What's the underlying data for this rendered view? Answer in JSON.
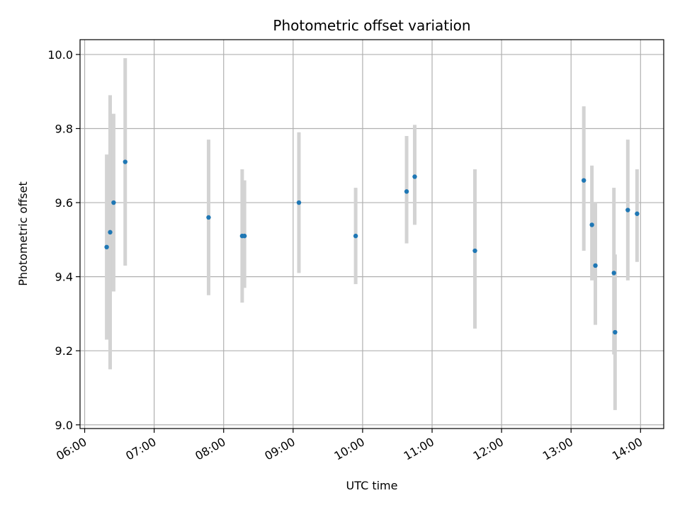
{
  "chart_data": {
    "type": "scatter",
    "title": "Photometric offset variation",
    "xlabel": "UTC time",
    "ylabel": "Photometric offset",
    "grid": true,
    "xlim": [
      "05:56",
      "14:20"
    ],
    "ylim": [
      8.99,
      10.04
    ],
    "x_ticks": [
      "06:00",
      "07:00",
      "08:00",
      "09:00",
      "10:00",
      "11:00",
      "12:00",
      "13:00",
      "14:00"
    ],
    "y_ticks": [
      9.0,
      9.2,
      9.4,
      9.6,
      9.8,
      10.0
    ],
    "marker_color": "#1f77b4",
    "errorbar_color": "#d3d3d3",
    "series": [
      {
        "points": [
          {
            "x": "06:19",
            "y": 9.48,
            "err_low": 9.23,
            "err_high": 9.73
          },
          {
            "x": "06:22",
            "y": 9.52,
            "err_low": 9.15,
            "err_high": 9.89
          },
          {
            "x": "06:25",
            "y": 9.6,
            "err_low": 9.36,
            "err_high": 9.84
          },
          {
            "x": "06:35",
            "y": 9.71,
            "err_low": 9.43,
            "err_high": 9.99
          },
          {
            "x": "07:47",
            "y": 9.56,
            "err_low": 9.35,
            "err_high": 9.77
          },
          {
            "x": "08:16",
            "y": 9.51,
            "err_low": 9.33,
            "err_high": 9.69
          },
          {
            "x": "08:18",
            "y": 9.51,
            "err_low": 9.37,
            "err_high": 9.66
          },
          {
            "x": "09:05",
            "y": 9.6,
            "err_low": 9.41,
            "err_high": 9.79
          },
          {
            "x": "09:54",
            "y": 9.51,
            "err_low": 9.38,
            "err_high": 9.64
          },
          {
            "x": "10:38",
            "y": 9.63,
            "err_low": 9.49,
            "err_high": 9.78
          },
          {
            "x": "10:45",
            "y": 9.67,
            "err_low": 9.54,
            "err_high": 9.81
          },
          {
            "x": "11:37",
            "y": 9.47,
            "err_low": 9.26,
            "err_high": 9.69
          },
          {
            "x": "13:11",
            "y": 9.66,
            "err_low": 9.47,
            "err_high": 9.86
          },
          {
            "x": "13:18",
            "y": 9.54,
            "err_low": 9.39,
            "err_high": 9.7
          },
          {
            "x": "13:21",
            "y": 9.43,
            "err_low": 9.27,
            "err_high": 9.6
          },
          {
            "x": "13:37",
            "y": 9.41,
            "err_low": 9.19,
            "err_high": 9.64
          },
          {
            "x": "13:38",
            "y": 9.25,
            "err_low": 9.04,
            "err_high": 9.46
          },
          {
            "x": "13:49",
            "y": 9.58,
            "err_low": 9.39,
            "err_high": 9.77
          },
          {
            "x": "13:57",
            "y": 9.57,
            "err_low": 9.44,
            "err_high": 9.69
          }
        ]
      }
    ]
  }
}
